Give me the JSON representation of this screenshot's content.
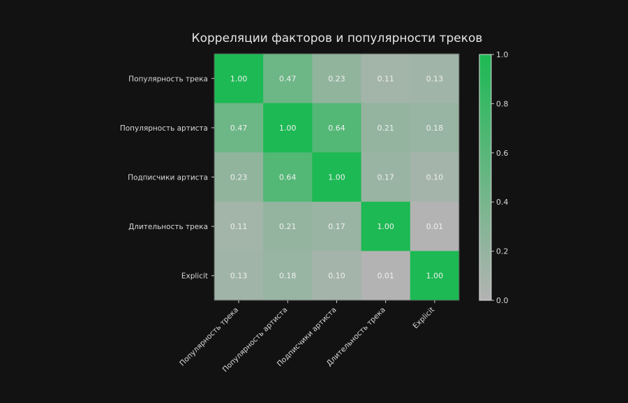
{
  "chart_data": {
    "type": "heatmap",
    "title": "Корреляции факторов и популярности треков",
    "row_labels": [
      "Популярность трека",
      "Популярность артиста",
      "Подписчики артиста",
      "Длительность трека",
      "Explicit"
    ],
    "col_labels": [
      "Популярность трека",
      "Популярность артиста",
      "Подписчики артиста",
      "Длительность трека",
      "Explicit"
    ],
    "values": [
      [
        1.0,
        0.47,
        0.23,
        0.11,
        0.13
      ],
      [
        0.47,
        1.0,
        0.64,
        0.21,
        0.18
      ],
      [
        0.23,
        0.64,
        1.0,
        0.17,
        0.1
      ],
      [
        0.11,
        0.21,
        0.17,
        1.0,
        0.01
      ],
      [
        0.13,
        0.18,
        0.1,
        0.01,
        1.0
      ]
    ],
    "colorbar": {
      "range": [
        0.0,
        1.0
      ],
      "ticks": [
        "0.0",
        "0.2",
        "0.4",
        "0.6",
        "0.8",
        "1.0"
      ],
      "color_low": "#b3b3b3",
      "color_high": "#1db954"
    },
    "background": "#121212"
  }
}
